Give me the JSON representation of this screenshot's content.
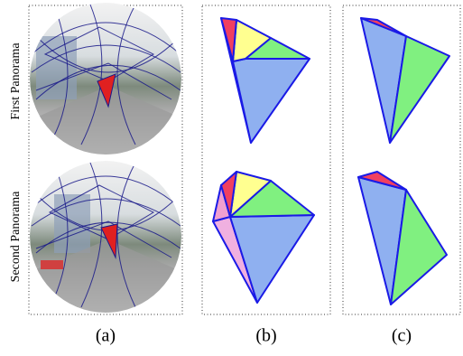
{
  "row_labels": [
    "First Panorama",
    "Second Panorama"
  ],
  "panel_labels": [
    "(a)",
    "(b)",
    "(c)"
  ]
}
